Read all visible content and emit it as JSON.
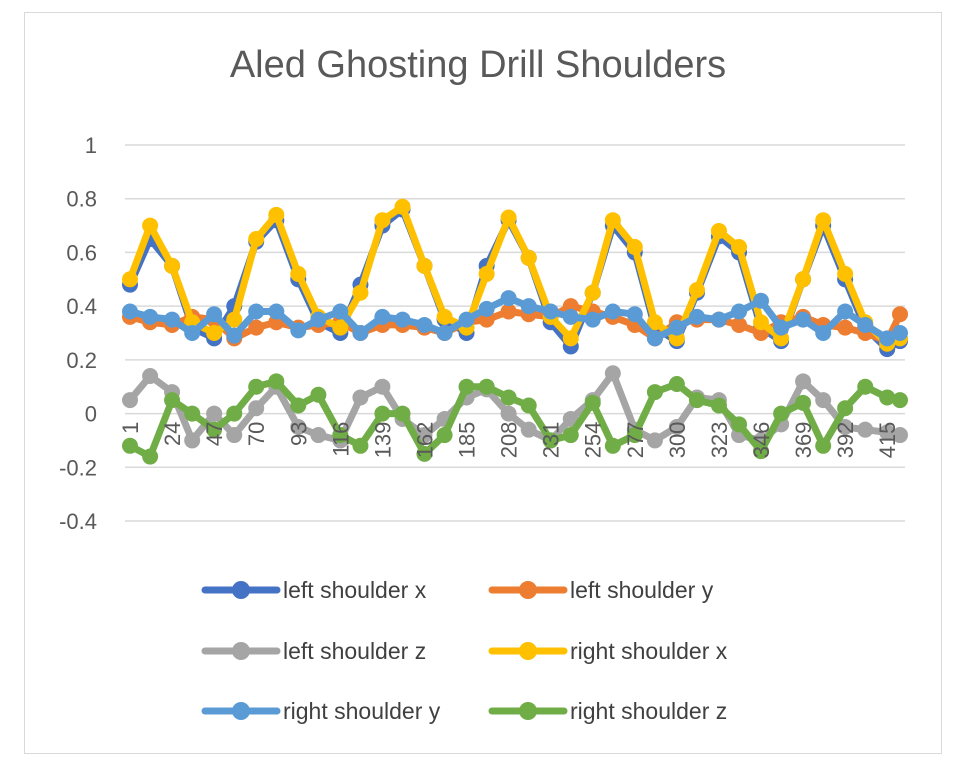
{
  "chart_data": {
    "type": "line",
    "title": "Aled Ghosting Drill Shoulders",
    "xlabel": "",
    "ylabel": "",
    "ylim": [
      -0.4,
      1
    ],
    "yticks": [
      "1",
      "0.8",
      "0.6",
      "0.4",
      "0.2",
      "0",
      "-0.2",
      "-0.4"
    ],
    "xlim": [
      1,
      422
    ],
    "xticks": [
      "1",
      "24",
      "47",
      "70",
      "93",
      "116",
      "139",
      "162",
      "185",
      "208",
      "231",
      "254",
      "277",
      "300",
      "323",
      "346",
      "369",
      "392",
      "415"
    ],
    "grid": true,
    "legend": "bottom",
    "x": [
      1,
      12,
      24,
      35,
      47,
      58,
      70,
      81,
      93,
      104,
      116,
      127,
      139,
      150,
      162,
      173,
      185,
      196,
      208,
      219,
      231,
      242,
      254,
      265,
      277,
      288,
      300,
      311,
      323,
      334,
      346,
      357,
      369,
      380,
      392,
      403,
      415,
      422
    ],
    "series": [
      {
        "name": "left shoulder x",
        "color": "#4472C4",
        "values": [
          0.48,
          0.65,
          0.55,
          0.32,
          0.28,
          0.4,
          0.64,
          0.72,
          0.5,
          0.34,
          0.3,
          0.48,
          0.7,
          0.76,
          0.55,
          0.35,
          0.3,
          0.55,
          0.72,
          0.58,
          0.34,
          0.25,
          0.45,
          0.7,
          0.6,
          0.32,
          0.27,
          0.45,
          0.66,
          0.6,
          0.32,
          0.27,
          0.5,
          0.7,
          0.5,
          0.32,
          0.24,
          0.27
        ]
      },
      {
        "name": "left shoulder y",
        "color": "#ED7D31",
        "values": [
          0.36,
          0.34,
          0.33,
          0.36,
          0.35,
          0.28,
          0.32,
          0.34,
          0.32,
          0.33,
          0.34,
          0.3,
          0.33,
          0.33,
          0.32,
          0.3,
          0.34,
          0.35,
          0.38,
          0.37,
          0.36,
          0.4,
          0.38,
          0.36,
          0.33,
          0.28,
          0.34,
          0.35,
          0.35,
          0.33,
          0.3,
          0.34,
          0.36,
          0.33,
          0.32,
          0.3,
          0.27,
          0.37
        ]
      },
      {
        "name": "left shoulder z",
        "color": "#A5A5A5",
        "values": [
          0.05,
          0.14,
          0.08,
          -0.1,
          0.0,
          -0.08,
          0.02,
          0.1,
          -0.05,
          -0.08,
          -0.1,
          0.06,
          0.1,
          -0.02,
          -0.08,
          -0.02,
          0.06,
          0.09,
          0.0,
          -0.06,
          -0.1,
          -0.02,
          0.05,
          0.15,
          -0.06,
          -0.1,
          -0.05,
          0.06,
          0.05,
          -0.08,
          -0.1,
          -0.04,
          0.12,
          0.05,
          -0.05,
          -0.06,
          -0.07,
          -0.08
        ]
      },
      {
        "name": "right shoulder x",
        "color": "#FFC000",
        "values": [
          0.5,
          0.7,
          0.55,
          0.34,
          0.3,
          0.35,
          0.65,
          0.74,
          0.52,
          0.36,
          0.32,
          0.45,
          0.72,
          0.77,
          0.55,
          0.36,
          0.32,
          0.52,
          0.73,
          0.58,
          0.36,
          0.28,
          0.45,
          0.72,
          0.62,
          0.34,
          0.28,
          0.46,
          0.68,
          0.62,
          0.34,
          0.28,
          0.5,
          0.72,
          0.52,
          0.34,
          0.26,
          0.28
        ]
      },
      {
        "name": "right shoulder y",
        "color": "#5B9BD5",
        "values": [
          0.38,
          0.36,
          0.35,
          0.3,
          0.37,
          0.29,
          0.38,
          0.38,
          0.31,
          0.35,
          0.38,
          0.3,
          0.36,
          0.35,
          0.33,
          0.3,
          0.35,
          0.39,
          0.43,
          0.4,
          0.38,
          0.36,
          0.35,
          0.38,
          0.37,
          0.28,
          0.32,
          0.36,
          0.35,
          0.38,
          0.42,
          0.32,
          0.35,
          0.3,
          0.38,
          0.33,
          0.28,
          0.3
        ]
      },
      {
        "name": "right shoulder z",
        "color": "#70AD47",
        "values": [
          -0.12,
          -0.16,
          0.05,
          0.0,
          -0.06,
          0.0,
          0.1,
          0.12,
          0.03,
          0.07,
          -0.08,
          -0.12,
          0.0,
          0.0,
          -0.15,
          -0.08,
          0.1,
          0.1,
          0.06,
          0.03,
          -0.1,
          -0.08,
          0.04,
          -0.12,
          -0.08,
          0.08,
          0.11,
          0.05,
          0.03,
          -0.04,
          -0.14,
          0.0,
          0.04,
          -0.12,
          0.02,
          0.1,
          0.06,
          0.05
        ]
      }
    ]
  }
}
